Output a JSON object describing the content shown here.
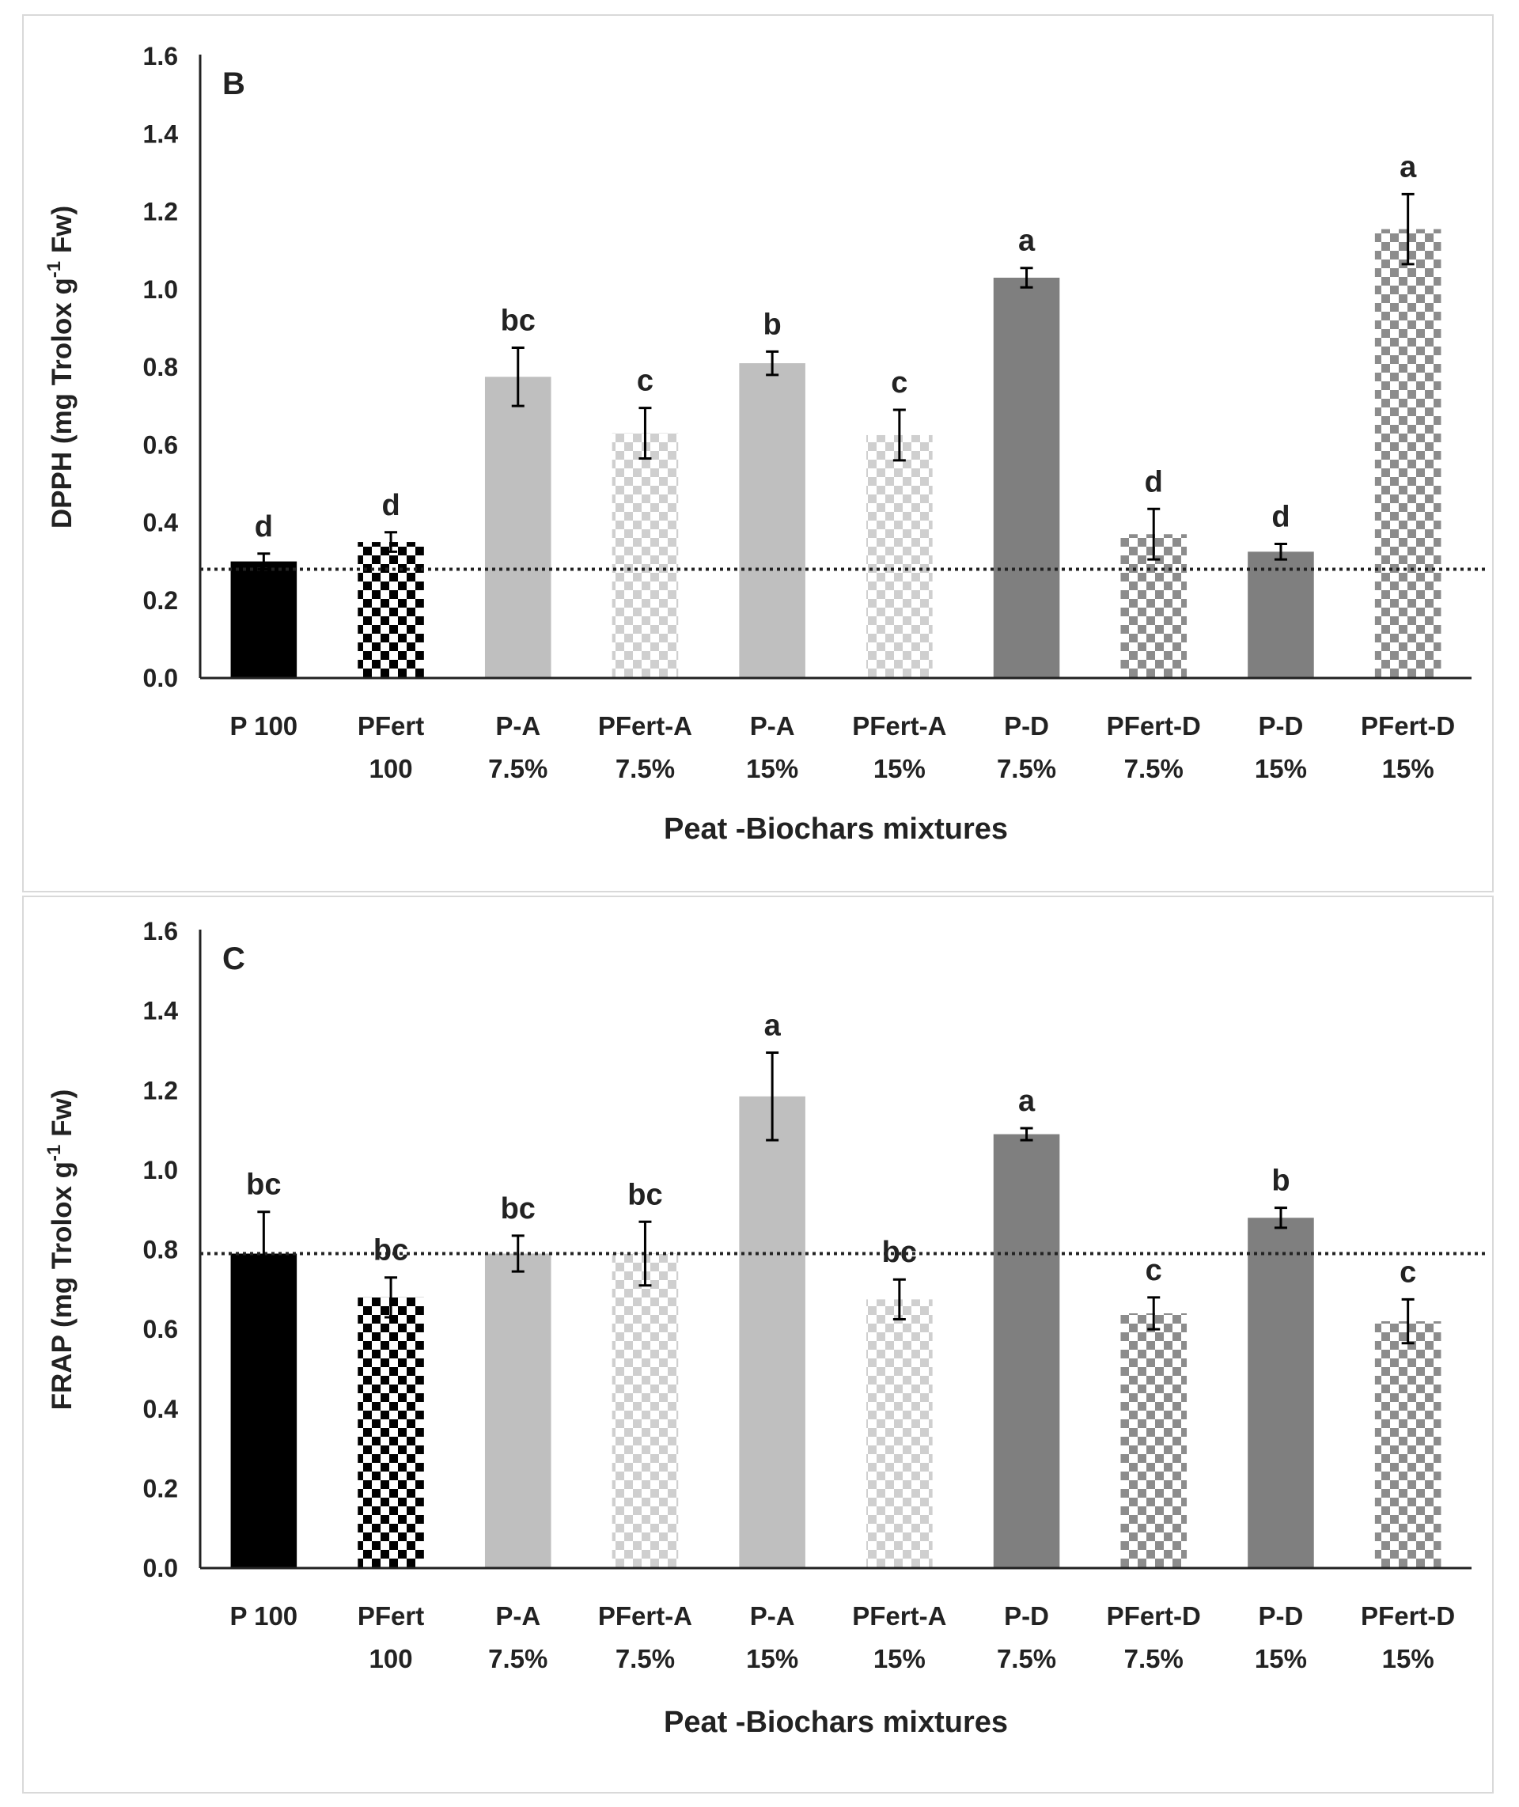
{
  "chart_data": [
    {
      "type": "bar",
      "panel_label": "B",
      "title": "",
      "xlabel": "Peat -Biochars mixtures",
      "ylabel": "DPPH (mg Trolox g-1 Fw)",
      "ylabel_main": "DPPH (mg Trolox g",
      "ylabel_sup": "-1",
      "ylabel_end": " Fw)",
      "ylim": [
        0,
        1.6
      ],
      "yticks": [
        "0.0",
        "0.2",
        "0.4",
        "0.6",
        "0.8",
        "1.0",
        "1.2",
        "1.4",
        "1.6"
      ],
      "grid": false,
      "categories": [
        [
          "P 100",
          ""
        ],
        [
          "PFert",
          "100"
        ],
        [
          "P-A",
          "7.5%"
        ],
        [
          "PFert-A",
          "7.5%"
        ],
        [
          "P-A",
          "15%"
        ],
        [
          "PFert-A",
          "15%"
        ],
        [
          "P-D",
          "7.5%"
        ],
        [
          "PFert-D",
          "7.5%"
        ],
        [
          "P-D",
          "15%"
        ],
        [
          "PFert-D",
          "15%"
        ]
      ],
      "values": [
        0.3,
        0.35,
        0.775,
        0.63,
        0.81,
        0.625,
        1.03,
        0.37,
        0.325,
        1.155
      ],
      "errors": [
        0.02,
        0.025,
        0.075,
        0.065,
        0.03,
        0.065,
        0.025,
        0.065,
        0.02,
        0.09
      ],
      "letters": [
        "d",
        "d",
        "bc",
        "c",
        "b",
        "c",
        "a",
        "d",
        "d",
        "a"
      ],
      "reference_line": 0.28,
      "fills": [
        "solid-black",
        "check-dark",
        "solid-light",
        "check-light",
        "solid-light",
        "check-light",
        "solid-dark",
        "check-mid",
        "solid-dark",
        "check-mid"
      ]
    },
    {
      "type": "bar",
      "panel_label": "C",
      "title": "",
      "xlabel": "Peat -Biochars mixtures",
      "ylabel": "FRAP (mg Trolox g-1 Fw)",
      "ylabel_main": "FRAP (mg Trolox g",
      "ylabel_sup": "-1",
      "ylabel_end": " Fw)",
      "ylim": [
        0,
        1.6
      ],
      "yticks": [
        "0.0",
        "0.2",
        "0.4",
        "0.6",
        "0.8",
        "1.0",
        "1.2",
        "1.4",
        "1.6"
      ],
      "grid": false,
      "categories": [
        [
          "P 100",
          ""
        ],
        [
          "PFert",
          "100"
        ],
        [
          "P-A",
          "7.5%"
        ],
        [
          "PFert-A",
          "7.5%"
        ],
        [
          "P-A",
          "15%"
        ],
        [
          "PFert-A",
          "15%"
        ],
        [
          "P-D",
          "7.5%"
        ],
        [
          "PFert-D",
          "7.5%"
        ],
        [
          "P-D",
          "15%"
        ],
        [
          "PFert-D",
          "15%"
        ]
      ],
      "values": [
        0.79,
        0.68,
        0.79,
        0.79,
        1.185,
        0.675,
        1.09,
        0.64,
        0.88,
        0.62
      ],
      "errors": [
        0.105,
        0.05,
        0.045,
        0.08,
        0.11,
        0.05,
        0.015,
        0.04,
        0.025,
        0.055
      ],
      "letters": [
        "bc",
        "bc",
        "bc",
        "bc",
        "a",
        "bc",
        "a",
        "c",
        "b",
        "c"
      ],
      "reference_line": 0.79,
      "fills": [
        "solid-black",
        "check-dark",
        "solid-light",
        "check-light",
        "solid-light",
        "check-light",
        "solid-dark",
        "check-mid",
        "solid-dark",
        "check-mid"
      ]
    }
  ],
  "colors": {
    "solid-black": "#000000",
    "solid-light": "#bfbfbf",
    "solid-dark": "#7f7f7f",
    "check-dark-fg": "#000000",
    "check-light-fg": "#cfcfcf",
    "check-mid-fg": "#8c8c8c",
    "axis": "#222222"
  }
}
